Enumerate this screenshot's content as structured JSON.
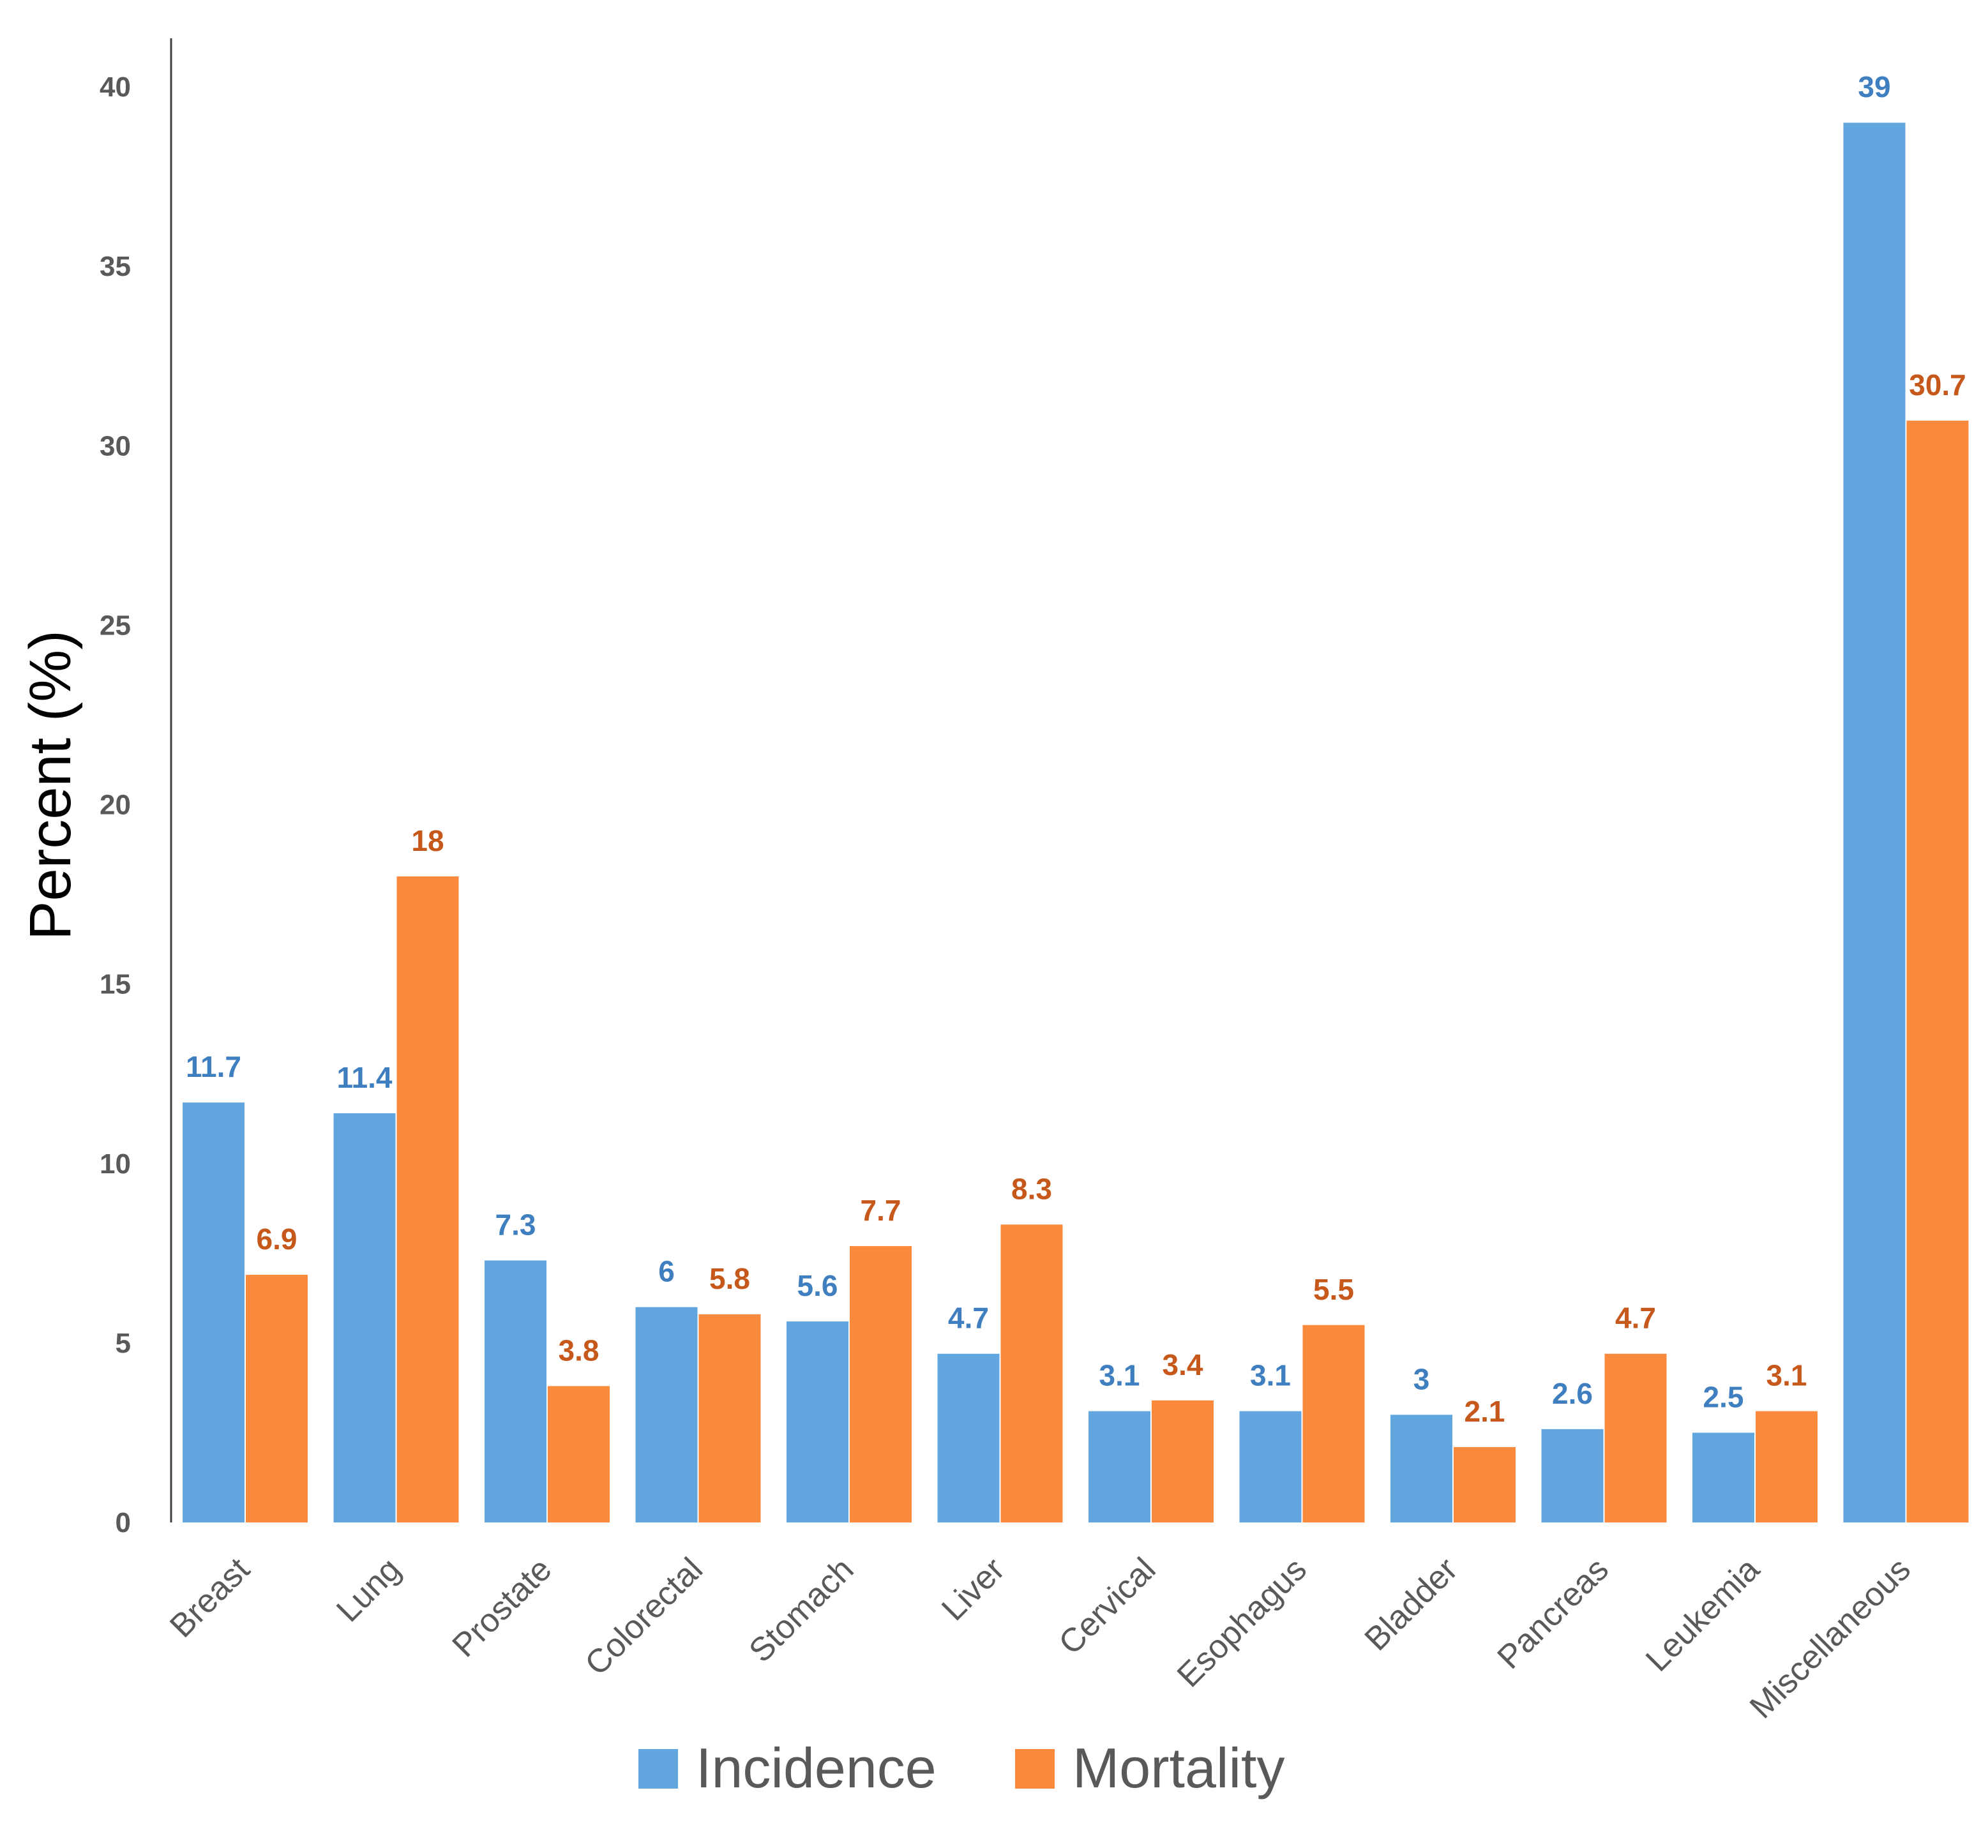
{
  "chart_data": {
    "type": "bar",
    "title": "",
    "xlabel": "",
    "ylabel": "Percent (%)",
    "ylim": [
      0,
      40
    ],
    "yticks": [
      0,
      5,
      10,
      15,
      20,
      25,
      30,
      35,
      40
    ],
    "grid": false,
    "legend_position": "bottom",
    "categories": [
      "Breast",
      "Lung",
      "Prostate",
      "Colorectal",
      "Stomach",
      "Liver",
      "Cervical",
      "Esophagus",
      "Bladder",
      "Pancreas",
      "Leukemia",
      "Miscellaneous"
    ],
    "series": [
      {
        "name": "Incidence",
        "color": "#62A6E0",
        "label_color": "#3F7FC0",
        "values": [
          11.7,
          11.4,
          7.3,
          6,
          5.6,
          4.7,
          3.1,
          3.1,
          3,
          2.6,
          2.5,
          39
        ],
        "labels": [
          "11.7",
          "11.4",
          "7.3",
          "6",
          "5.6",
          "4.7",
          "3.1",
          "3.1",
          "3",
          "2.6",
          "2.5",
          "39"
        ]
      },
      {
        "name": "Mortality",
        "color": "#FB8A3C",
        "label_color": "#C5581A",
        "values": [
          6.9,
          18,
          3.8,
          5.8,
          7.7,
          8.3,
          3.4,
          5.5,
          2.1,
          4.7,
          3.1,
          30.7
        ],
        "labels": [
          "6.9",
          "18",
          "3.8",
          "5.8",
          "7.7",
          "8.3",
          "3.4",
          "5.5",
          "2.1",
          "4.7",
          "3.1",
          "30.7"
        ]
      }
    ]
  }
}
